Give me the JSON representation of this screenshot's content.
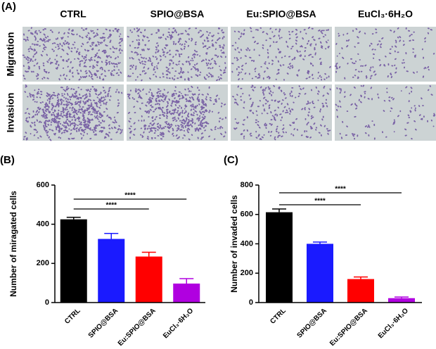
{
  "micrographs": {
    "label": "(A)",
    "columns": [
      "CTRL",
      "SPIO@BSA",
      "Eu:SPIO@BSA",
      "EuCl₃·6H₂O"
    ],
    "rows": [
      "Migration",
      "Invasion"
    ]
  },
  "chart_data": [
    {
      "type": "bar",
      "label": "(B)",
      "y_label": "Number of miragated cells",
      "categories": [
        "CTRL",
        "SPIO@BSA",
        "Eu:SPIO@BSA",
        "EuCl₃·6H₂O"
      ],
      "values": [
        425,
        325,
        235,
        97
      ],
      "errors": [
        10,
        28,
        22,
        25
      ],
      "colors": [
        "#000000",
        "#1a1aff",
        "#ff0000",
        "#b000e0"
      ],
      "ylim": [
        0,
        600
      ],
      "yticks": [
        0,
        200,
        400,
        600
      ],
      "annotations": [
        {
          "text": "****",
          "between": [
            "CTRL",
            "Eu:SPIO@BSA"
          ]
        },
        {
          "text": "****",
          "between": [
            "CTRL",
            "EuCl₃·6H₂O"
          ]
        }
      ]
    },
    {
      "type": "bar",
      "label": "(C)",
      "y_label": "Number of invaded cells",
      "categories": [
        "CTRL",
        "SPIO@BSA",
        "Eu:SPIO@BSA",
        "EuCl₃·6H₂O"
      ],
      "values": [
        615,
        400,
        160,
        30
      ],
      "errors": [
        22,
        12,
        14,
        8
      ],
      "colors": [
        "#000000",
        "#1a1aff",
        "#ff0000",
        "#b000e0"
      ],
      "ylim": [
        0,
        800
      ],
      "yticks": [
        0,
        200,
        400,
        600,
        800
      ],
      "annotations": [
        {
          "text": "****",
          "between": [
            "CTRL",
            "Eu:SPIO@BSA"
          ]
        },
        {
          "text": "****",
          "between": [
            "CTRL",
            "EuCl₃·6H₂O"
          ]
        }
      ]
    }
  ]
}
